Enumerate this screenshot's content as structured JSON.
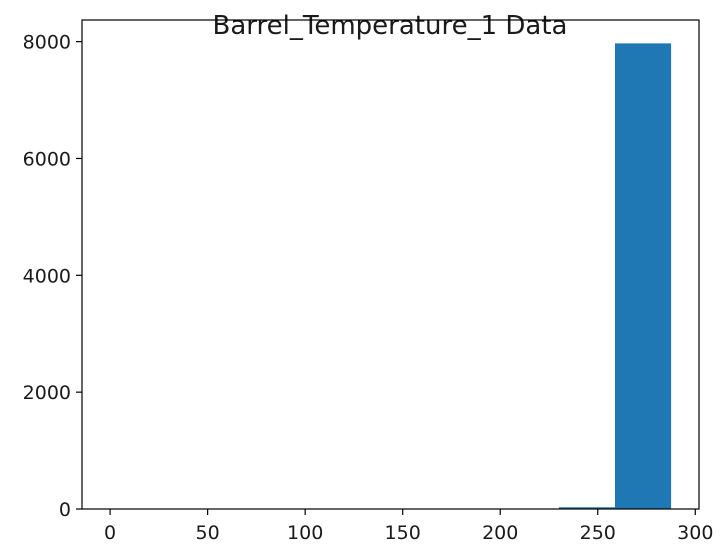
{
  "chart_data": {
    "type": "bar",
    "title": "Barrel_Temperature_1 Data",
    "xlabel": "",
    "ylabel": "",
    "xlim": [
      -14.4,
      301.9
    ],
    "ylim": [
      0,
      8370
    ],
    "xticks": [
      0,
      50,
      100,
      150,
      200,
      250,
      300
    ],
    "yticks": [
      0,
      2000,
      4000,
      6000,
      8000
    ],
    "bin_edges": [
      0,
      28.76,
      57.52,
      86.28,
      115.04,
      143.8,
      172.56,
      201.32,
      230.08,
      258.84,
      287.6
    ],
    "values": [
      1,
      0,
      0,
      0,
      0,
      0,
      0,
      0,
      30,
      7970
    ],
    "bar_color": "#1f77b4",
    "grid": false,
    "legend": "none"
  }
}
